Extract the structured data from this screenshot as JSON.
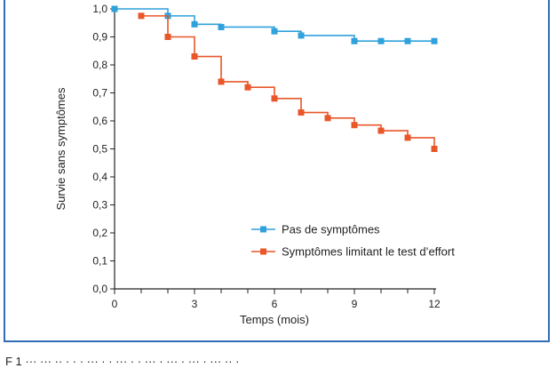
{
  "chart_data": {
    "type": "line",
    "step": true,
    "xlabel": "Temps (mois)",
    "ylabel": "Survie sans symptômes",
    "xlim": [
      0,
      12
    ],
    "ylim": [
      0,
      1
    ],
    "x_ticks": [
      0,
      3,
      6,
      9,
      12
    ],
    "x_tick_labels": [
      "0",
      "3",
      "6",
      "9",
      "12"
    ],
    "x_minor_ticks": [
      1,
      2,
      4,
      5,
      7,
      8,
      10,
      11
    ],
    "y_ticks": [
      0,
      0.1,
      0.2,
      0.3,
      0.4,
      0.5,
      0.6,
      0.7,
      0.8,
      0.9,
      1.0
    ],
    "y_tick_labels": [
      "0,0",
      "0,1",
      "0,2",
      "0,3",
      "0,4",
      "0,5",
      "0,6",
      "0,7",
      "0,8",
      "0,9",
      "1,0"
    ],
    "grid": false,
    "legend_position": "lower-right",
    "series": [
      {
        "name": "Pas de symptômes",
        "color": "#2fa1db",
        "steps": [
          {
            "x": 0,
            "y": 1.0
          },
          {
            "x": 2,
            "y": 0.975
          },
          {
            "x": 3,
            "y": 0.945
          },
          {
            "x": 4,
            "y": 0.935
          },
          {
            "x": 6,
            "y": 0.92
          },
          {
            "x": 7,
            "y": 0.905
          },
          {
            "x": 9,
            "y": 0.885
          },
          {
            "x": 12,
            "y": 0.885
          }
        ],
        "markers": [
          {
            "x": 0,
            "y": 1.0
          },
          {
            "x": 2,
            "y": 0.975
          },
          {
            "x": 3,
            "y": 0.945
          },
          {
            "x": 4,
            "y": 0.935
          },
          {
            "x": 6,
            "y": 0.92
          },
          {
            "x": 7,
            "y": 0.905
          },
          {
            "x": 9,
            "y": 0.885
          },
          {
            "x": 10,
            "y": 0.885
          },
          {
            "x": 11,
            "y": 0.885
          },
          {
            "x": 12,
            "y": 0.885
          }
        ]
      },
      {
        "name": "Symptômes limitant le test d’effort",
        "color": "#e8572a",
        "steps": [
          {
            "x": 1,
            "y": 0.975
          },
          {
            "x": 2,
            "y": 0.9
          },
          {
            "x": 3,
            "y": 0.83
          },
          {
            "x": 4,
            "y": 0.74
          },
          {
            "x": 5,
            "y": 0.72
          },
          {
            "x": 6,
            "y": 0.68
          },
          {
            "x": 7,
            "y": 0.63
          },
          {
            "x": 8,
            "y": 0.61
          },
          {
            "x": 9,
            "y": 0.585
          },
          {
            "x": 10,
            "y": 0.565
          },
          {
            "x": 11,
            "y": 0.54
          },
          {
            "x": 12,
            "y": 0.5
          }
        ],
        "markers": [
          {
            "x": 1,
            "y": 0.975
          },
          {
            "x": 2,
            "y": 0.9
          },
          {
            "x": 3,
            "y": 0.83
          },
          {
            "x": 4,
            "y": 0.74
          },
          {
            "x": 5,
            "y": 0.72
          },
          {
            "x": 6,
            "y": 0.68
          },
          {
            "x": 7,
            "y": 0.63
          },
          {
            "x": 8,
            "y": 0.61
          },
          {
            "x": 9,
            "y": 0.585
          },
          {
            "x": 10,
            "y": 0.565
          },
          {
            "x": 11,
            "y": 0.54
          },
          {
            "x": 12,
            "y": 0.5
          }
        ]
      }
    ]
  },
  "caption": {
    "text": "F  1  ···  ··· ·· ·  ·  ·  ··· ·  ·  ···  ·  ·  ··· ·  ···  ·  ···  ·  ··· ··  ·"
  }
}
